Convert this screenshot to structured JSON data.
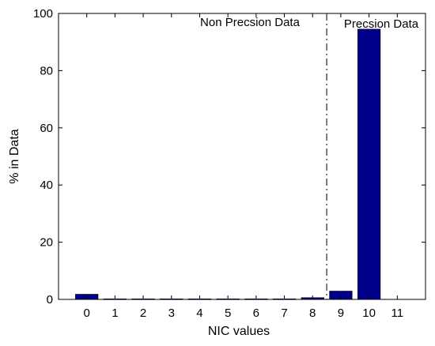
{
  "chart_data": {
    "type": "bar",
    "title": "",
    "xlabel": "NIC values",
    "ylabel": "% in Data",
    "categories": [
      "0",
      "1",
      "2",
      "3",
      "4",
      "5",
      "6",
      "7",
      "8",
      "9",
      "10",
      "11"
    ],
    "x": [
      0,
      1,
      2,
      3,
      4,
      5,
      6,
      7,
      8,
      9,
      10,
      11
    ],
    "values": [
      1.8,
      0.2,
      0.2,
      0.2,
      0.2,
      0.2,
      0.2,
      0.2,
      0.6,
      2.9,
      94.5,
      0
    ],
    "xlim": [
      -1,
      12
    ],
    "ylim": [
      0,
      100
    ],
    "yticks": [
      0,
      20,
      40,
      60,
      80,
      100
    ],
    "bar_color": "#00008b",
    "grid": false,
    "legend": "none",
    "annotations": [
      {
        "text": "Non Precsion Data",
        "region": "left"
      },
      {
        "text": "Precsion Data",
        "region": "right"
      }
    ],
    "divider": {
      "x": 8.5,
      "style": "dash-dot"
    }
  }
}
